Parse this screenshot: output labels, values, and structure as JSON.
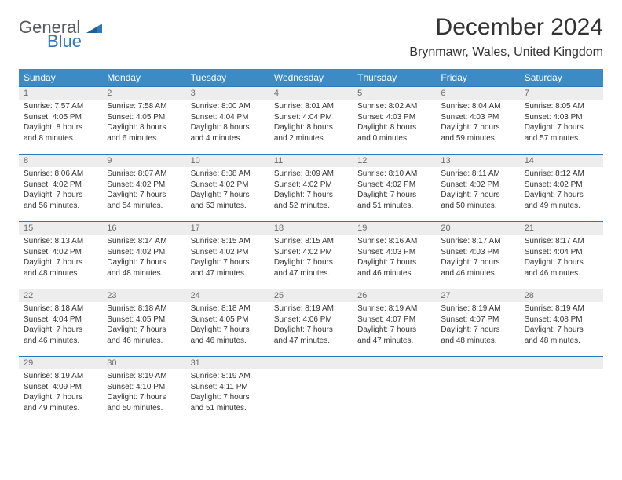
{
  "brand": {
    "line1": "General",
    "line2": "Blue"
  },
  "title": "December 2024",
  "location": "Brynmawr, Wales, United Kingdom",
  "colors": {
    "header_bg": "#3b8bc7",
    "header_text": "#ffffff",
    "daybar_bg": "#ededed",
    "daybar_border": "#2f77bb",
    "text": "#333333",
    "logo_gray": "#58595b",
    "logo_blue": "#2f77bb"
  },
  "day_headers": [
    "Sunday",
    "Monday",
    "Tuesday",
    "Wednesday",
    "Thursday",
    "Friday",
    "Saturday"
  ],
  "weeks": [
    [
      {
        "n": "1",
        "sunrise": "Sunrise: 7:57 AM",
        "sunset": "Sunset: 4:05 PM",
        "daylight": "Daylight: 8 hours and 8 minutes."
      },
      {
        "n": "2",
        "sunrise": "Sunrise: 7:58 AM",
        "sunset": "Sunset: 4:05 PM",
        "daylight": "Daylight: 8 hours and 6 minutes."
      },
      {
        "n": "3",
        "sunrise": "Sunrise: 8:00 AM",
        "sunset": "Sunset: 4:04 PM",
        "daylight": "Daylight: 8 hours and 4 minutes."
      },
      {
        "n": "4",
        "sunrise": "Sunrise: 8:01 AM",
        "sunset": "Sunset: 4:04 PM",
        "daylight": "Daylight: 8 hours and 2 minutes."
      },
      {
        "n": "5",
        "sunrise": "Sunrise: 8:02 AM",
        "sunset": "Sunset: 4:03 PM",
        "daylight": "Daylight: 8 hours and 0 minutes."
      },
      {
        "n": "6",
        "sunrise": "Sunrise: 8:04 AM",
        "sunset": "Sunset: 4:03 PM",
        "daylight": "Daylight: 7 hours and 59 minutes."
      },
      {
        "n": "7",
        "sunrise": "Sunrise: 8:05 AM",
        "sunset": "Sunset: 4:03 PM",
        "daylight": "Daylight: 7 hours and 57 minutes."
      }
    ],
    [
      {
        "n": "8",
        "sunrise": "Sunrise: 8:06 AM",
        "sunset": "Sunset: 4:02 PM",
        "daylight": "Daylight: 7 hours and 56 minutes."
      },
      {
        "n": "9",
        "sunrise": "Sunrise: 8:07 AM",
        "sunset": "Sunset: 4:02 PM",
        "daylight": "Daylight: 7 hours and 54 minutes."
      },
      {
        "n": "10",
        "sunrise": "Sunrise: 8:08 AM",
        "sunset": "Sunset: 4:02 PM",
        "daylight": "Daylight: 7 hours and 53 minutes."
      },
      {
        "n": "11",
        "sunrise": "Sunrise: 8:09 AM",
        "sunset": "Sunset: 4:02 PM",
        "daylight": "Daylight: 7 hours and 52 minutes."
      },
      {
        "n": "12",
        "sunrise": "Sunrise: 8:10 AM",
        "sunset": "Sunset: 4:02 PM",
        "daylight": "Daylight: 7 hours and 51 minutes."
      },
      {
        "n": "13",
        "sunrise": "Sunrise: 8:11 AM",
        "sunset": "Sunset: 4:02 PM",
        "daylight": "Daylight: 7 hours and 50 minutes."
      },
      {
        "n": "14",
        "sunrise": "Sunrise: 8:12 AM",
        "sunset": "Sunset: 4:02 PM",
        "daylight": "Daylight: 7 hours and 49 minutes."
      }
    ],
    [
      {
        "n": "15",
        "sunrise": "Sunrise: 8:13 AM",
        "sunset": "Sunset: 4:02 PM",
        "daylight": "Daylight: 7 hours and 48 minutes."
      },
      {
        "n": "16",
        "sunrise": "Sunrise: 8:14 AM",
        "sunset": "Sunset: 4:02 PM",
        "daylight": "Daylight: 7 hours and 48 minutes."
      },
      {
        "n": "17",
        "sunrise": "Sunrise: 8:15 AM",
        "sunset": "Sunset: 4:02 PM",
        "daylight": "Daylight: 7 hours and 47 minutes."
      },
      {
        "n": "18",
        "sunrise": "Sunrise: 8:15 AM",
        "sunset": "Sunset: 4:02 PM",
        "daylight": "Daylight: 7 hours and 47 minutes."
      },
      {
        "n": "19",
        "sunrise": "Sunrise: 8:16 AM",
        "sunset": "Sunset: 4:03 PM",
        "daylight": "Daylight: 7 hours and 46 minutes."
      },
      {
        "n": "20",
        "sunrise": "Sunrise: 8:17 AM",
        "sunset": "Sunset: 4:03 PM",
        "daylight": "Daylight: 7 hours and 46 minutes."
      },
      {
        "n": "21",
        "sunrise": "Sunrise: 8:17 AM",
        "sunset": "Sunset: 4:04 PM",
        "daylight": "Daylight: 7 hours and 46 minutes."
      }
    ],
    [
      {
        "n": "22",
        "sunrise": "Sunrise: 8:18 AM",
        "sunset": "Sunset: 4:04 PM",
        "daylight": "Daylight: 7 hours and 46 minutes."
      },
      {
        "n": "23",
        "sunrise": "Sunrise: 8:18 AM",
        "sunset": "Sunset: 4:05 PM",
        "daylight": "Daylight: 7 hours and 46 minutes."
      },
      {
        "n": "24",
        "sunrise": "Sunrise: 8:18 AM",
        "sunset": "Sunset: 4:05 PM",
        "daylight": "Daylight: 7 hours and 46 minutes."
      },
      {
        "n": "25",
        "sunrise": "Sunrise: 8:19 AM",
        "sunset": "Sunset: 4:06 PM",
        "daylight": "Daylight: 7 hours and 47 minutes."
      },
      {
        "n": "26",
        "sunrise": "Sunrise: 8:19 AM",
        "sunset": "Sunset: 4:07 PM",
        "daylight": "Daylight: 7 hours and 47 minutes."
      },
      {
        "n": "27",
        "sunrise": "Sunrise: 8:19 AM",
        "sunset": "Sunset: 4:07 PM",
        "daylight": "Daylight: 7 hours and 48 minutes."
      },
      {
        "n": "28",
        "sunrise": "Sunrise: 8:19 AM",
        "sunset": "Sunset: 4:08 PM",
        "daylight": "Daylight: 7 hours and 48 minutes."
      }
    ],
    [
      {
        "n": "29",
        "sunrise": "Sunrise: 8:19 AM",
        "sunset": "Sunset: 4:09 PM",
        "daylight": "Daylight: 7 hours and 49 minutes."
      },
      {
        "n": "30",
        "sunrise": "Sunrise: 8:19 AM",
        "sunset": "Sunset: 4:10 PM",
        "daylight": "Daylight: 7 hours and 50 minutes."
      },
      {
        "n": "31",
        "sunrise": "Sunrise: 8:19 AM",
        "sunset": "Sunset: 4:11 PM",
        "daylight": "Daylight: 7 hours and 51 minutes."
      },
      null,
      null,
      null,
      null
    ]
  ]
}
